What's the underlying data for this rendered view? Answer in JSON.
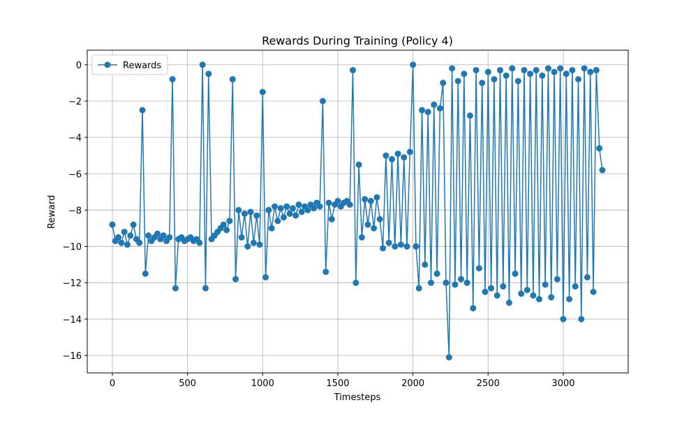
{
  "chart_data": {
    "type": "line",
    "title": "Rewards During Training (Policy 4)",
    "x_label": "Timesteps",
    "y_label": "Reward",
    "x": [
      0,
      20,
      40,
      60,
      80,
      100,
      120,
      140,
      160,
      180,
      200,
      220,
      240,
      260,
      280,
      300,
      320,
      340,
      360,
      380,
      400,
      420,
      440,
      460,
      480,
      500,
      520,
      540,
      560,
      580,
      600,
      620,
      640,
      660,
      680,
      700,
      720,
      740,
      760,
      780,
      800,
      820,
      840,
      860,
      880,
      900,
      920,
      940,
      960,
      980,
      1000,
      1020,
      1040,
      1060,
      1080,
      1100,
      1120,
      1140,
      1160,
      1180,
      1200,
      1220,
      1240,
      1260,
      1280,
      1300,
      1320,
      1340,
      1360,
      1380,
      1400,
      1420,
      1440,
      1460,
      1480,
      1500,
      1520,
      1540,
      1560,
      1580,
      1600,
      1620,
      1640,
      1660,
      1680,
      1700,
      1720,
      1740,
      1760,
      1780,
      1800,
      1820,
      1840,
      1860,
      1880,
      1900,
      1920,
      1940,
      1960,
      1980,
      2000,
      2020,
      2040,
      2060,
      2080,
      2100,
      2120,
      2140,
      2160,
      2180,
      2200,
      2220,
      2240,
      2260,
      2280,
      2300,
      2320,
      2340,
      2360,
      2380,
      2400,
      2420,
      2440,
      2460,
      2480,
      2500,
      2520,
      2540,
      2560,
      2580,
      2600,
      2620,
      2640,
      2660,
      2680,
      2700,
      2720,
      2740,
      2760,
      2780,
      2800,
      2820,
      2840,
      2860,
      2880,
      2900,
      2920,
      2940,
      2960,
      2980,
      3000,
      3020,
      3040,
      3060,
      3080,
      3100,
      3120,
      3140,
      3160,
      3180,
      3200,
      3220,
      3240,
      3260
    ],
    "series": [
      {
        "name": "Rewards",
        "color": "#1f77b4",
        "values": [
          -8.8,
          -9.7,
          -9.5,
          -9.8,
          -9.2,
          -9.9,
          -9.4,
          -8.8,
          -9.6,
          -9.8,
          -2.5,
          -11.5,
          -9.4,
          -9.7,
          -9.5,
          -9.3,
          -9.6,
          -9.4,
          -9.7,
          -9.5,
          -0.8,
          -12.3,
          -9.6,
          -9.5,
          -9.7,
          -9.6,
          -9.5,
          -9.7,
          -9.6,
          -9.8,
          0,
          -12.3,
          -0.5,
          -9.6,
          -9.4,
          -9.2,
          -9.0,
          -8.8,
          -9.1,
          -8.6,
          -0.8,
          -11.8,
          -8.0,
          -9.5,
          -8.2,
          -10.0,
          -8.1,
          -9.8,
          -8.3,
          -9.9,
          -1.5,
          -11.7,
          -8.0,
          -9.0,
          -7.8,
          -8.6,
          -7.9,
          -8.4,
          -7.8,
          -8.2,
          -7.9,
          -8.3,
          -7.7,
          -8.1,
          -7.8,
          -8.0,
          -7.7,
          -7.9,
          -7.6,
          -7.8,
          -2.0,
          -11.4,
          -7.6,
          -8.5,
          -7.7,
          -7.5,
          -7.8,
          -7.6,
          -7.5,
          -7.7,
          -0.3,
          -12.0,
          -5.5,
          -9.5,
          -7.4,
          -8.8,
          -7.5,
          -9.0,
          -7.3,
          -8.5,
          -10.1,
          -5.0,
          -9.8,
          -5.2,
          -10.0,
          -4.9,
          -9.9,
          -5.1,
          -10.0,
          -4.8,
          0,
          -10.0,
          -12.3,
          -2.5,
          -11.0,
          -2.6,
          -12.0,
          -2.2,
          -11.5,
          -2.4,
          -1.0,
          -12.0,
          -16.1,
          -0.2,
          -12.1,
          -0.9,
          -11.8,
          -0.5,
          -12.0,
          -2.8,
          -13.4,
          -0.3,
          -11.2,
          -1.0,
          -12.5,
          -0.4,
          -12.3,
          -0.8,
          -12.7,
          -0.3,
          -12.2,
          -0.6,
          -13.1,
          -0.2,
          -11.5,
          -0.9,
          -12.6,
          -0.3,
          -12.4,
          -0.5,
          -12.7,
          -0.3,
          -12.9,
          -0.6,
          -12.1,
          -0.2,
          -12.8,
          -0.4,
          -11.8,
          -0.2,
          -14.0,
          -0.5,
          -12.9,
          -0.3,
          -12.2,
          -0.8,
          -14.0,
          -0.2,
          -11.7,
          -0.4,
          -12.5,
          -0.3,
          -4.6,
          -5.8
        ]
      }
    ],
    "xlim": [
      -167,
      3432
    ],
    "ylim": [
      -16.96,
      0.8
    ],
    "xticks": [
      0,
      500,
      1000,
      1500,
      2000,
      2500,
      3000
    ],
    "yticks": [
      {
        "value": -16,
        "label": "−16"
      },
      {
        "value": -14,
        "label": "−14"
      },
      {
        "value": -12,
        "label": "−12"
      },
      {
        "value": -10,
        "label": "−10"
      },
      {
        "value": -8,
        "label": "−8"
      },
      {
        "value": -6,
        "label": "−6"
      },
      {
        "value": -4,
        "label": "−4"
      },
      {
        "value": -2,
        "label": "−2"
      },
      0
    ],
    "grid": true,
    "legend": "upper left"
  }
}
